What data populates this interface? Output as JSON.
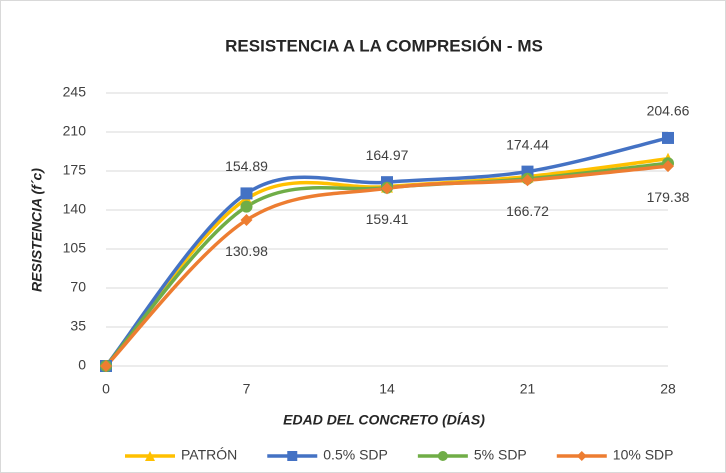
{
  "chart_data": {
    "type": "line",
    "title": "RESISTENCIA A LA COMPRESIÓN - MS",
    "x_label": "EDAD DEL CONCRETO (DÍAS)",
    "y_label": "RESISTENCIA (f´c)",
    "x": [
      0,
      7,
      14,
      21,
      28
    ],
    "xlim": [
      0,
      28
    ],
    "xticks": [
      0,
      7,
      14,
      21,
      28
    ],
    "ylim": [
      0,
      245
    ],
    "yticks": [
      0,
      35,
      70,
      105,
      140,
      175,
      210,
      245
    ],
    "grid": true,
    "smooth": true,
    "legend": "bottom",
    "series": [
      {
        "name": "PATRÓN",
        "color": "#FFC000",
        "marker": "triangle",
        "values": [
          0,
          150,
          161,
          170,
          186
        ]
      },
      {
        "name": "0.5% SDP",
        "color": "#4472C4",
        "marker": "square",
        "labels": "above",
        "values": [
          0,
          154.89,
          164.97,
          174.44,
          204.66
        ]
      },
      {
        "name": "5% SDP",
        "color": "#70AD47",
        "marker": "circle",
        "values": [
          0,
          143,
          160,
          168,
          182
        ]
      },
      {
        "name": "10% SDP",
        "color": "#ED7D31",
        "marker": "diamond",
        "labels": "below",
        "values": [
          0,
          130.98,
          159.41,
          166.72,
          179.38
        ]
      }
    ]
  }
}
